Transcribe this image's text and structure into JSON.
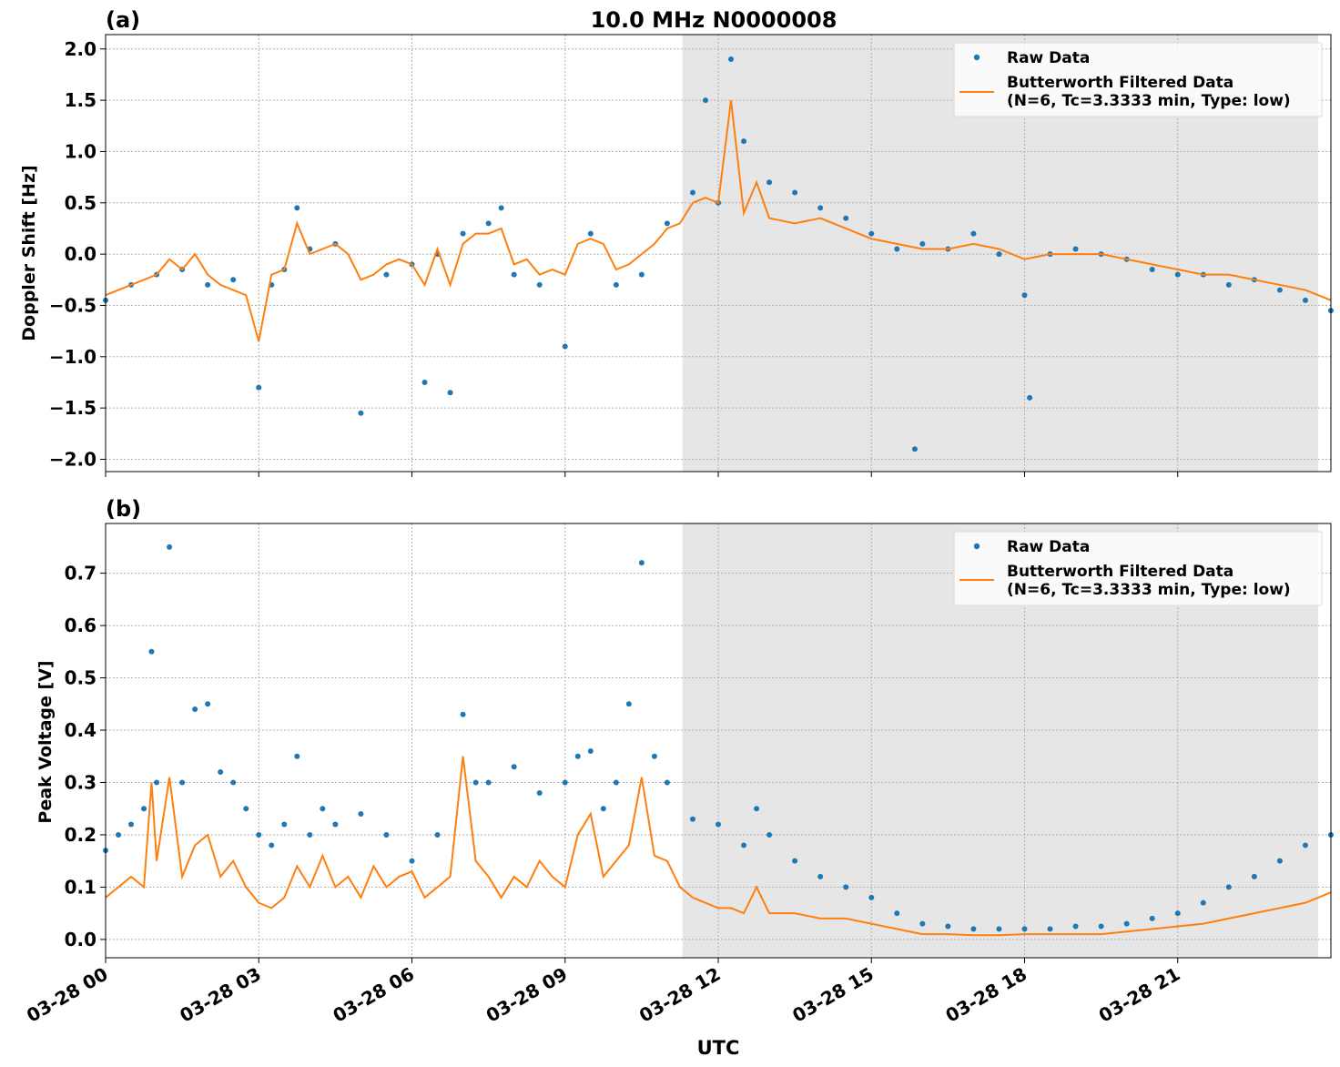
{
  "figure": {
    "title": "10.0 MHz N0000008",
    "xlabel": "UTC",
    "shade_color": "#e6e6e6",
    "raw_color": "#1f77b4",
    "filtered_color": "#ff7f0e"
  },
  "chart_data": [
    {
      "type": "scatter",
      "panel_label": "(a)",
      "title": "10.0 MHz N0000008",
      "ylabel": "Doppler Shift [Hz]",
      "xlabel": "",
      "xlim": [
        0,
        24
      ],
      "ylim": [
        -2.12,
        2.14
      ],
      "x_ticks": [
        0,
        3,
        6,
        9,
        12,
        15,
        18,
        21
      ],
      "x_tick_labels": [],
      "y_ticks": [
        -2.0,
        -1.5,
        -1.0,
        -0.5,
        0.0,
        0.5,
        1.0,
        1.5,
        2.0
      ],
      "y_tick_labels": [
        "−2.0",
        "−1.5",
        "−1.0",
        "−0.5",
        "0.0",
        "0.5",
        "1.0",
        "1.5",
        "2.0"
      ],
      "grid": true,
      "shaded_region_x": [
        11.3,
        23.75
      ],
      "legend_position": "top-right",
      "legend": [
        "Raw Data",
        "Butterworth Filtered Data\n(N=6, Tc=3.3333 min, Type: low)"
      ],
      "series": [
        {
          "name": "Raw Data",
          "style": "scatter",
          "x": [
            0.0,
            0.5,
            1.0,
            1.5,
            2.0,
            2.5,
            3.0,
            3.25,
            3.5,
            3.75,
            4.0,
            4.5,
            5.0,
            5.5,
            6.0,
            6.25,
            6.5,
            6.75,
            7.0,
            7.5,
            7.75,
            8.0,
            8.5,
            9.0,
            9.5,
            10.0,
            10.5,
            11.0,
            11.5,
            11.75,
            12.0,
            12.25,
            12.5,
            13.0,
            13.5,
            14.0,
            14.5,
            15.0,
            15.5,
            15.85,
            16.0,
            16.5,
            17.0,
            17.5,
            18.0,
            18.1,
            18.5,
            19.0,
            19.5,
            20.0,
            20.5,
            21.0,
            21.5,
            22.0,
            22.5,
            23.0,
            23.5,
            24.0
          ],
          "y": [
            -0.45,
            -0.3,
            -0.2,
            -0.15,
            -0.3,
            -0.25,
            -1.3,
            -0.3,
            -0.15,
            0.45,
            0.05,
            0.1,
            -1.55,
            -0.2,
            -0.1,
            -1.25,
            0.0,
            -1.35,
            0.2,
            0.3,
            0.45,
            -0.2,
            -0.3,
            -0.9,
            0.2,
            -0.3,
            -0.2,
            0.3,
            0.6,
            1.5,
            0.5,
            1.9,
            1.1,
            0.7,
            0.6,
            0.45,
            0.35,
            0.2,
            0.05,
            -1.9,
            0.1,
            0.05,
            0.2,
            0.0,
            -0.4,
            -1.4,
            0.0,
            0.05,
            0.0,
            -0.05,
            -0.15,
            -0.2,
            -0.2,
            -0.3,
            -0.25,
            -0.35,
            -0.45,
            -0.55
          ]
        },
        {
          "name": "Butterworth Filtered Data\n(N=6, Tc=3.3333 min, Type: low)",
          "style": "line",
          "x": [
            0.0,
            0.25,
            0.5,
            0.75,
            1.0,
            1.25,
            1.5,
            1.75,
            2.0,
            2.25,
            2.5,
            2.75,
            3.0,
            3.25,
            3.5,
            3.75,
            4.0,
            4.25,
            4.5,
            4.75,
            5.0,
            5.25,
            5.5,
            5.75,
            6.0,
            6.25,
            6.5,
            6.75,
            7.0,
            7.25,
            7.5,
            7.75,
            8.0,
            8.25,
            8.5,
            8.75,
            9.0,
            9.25,
            9.5,
            9.75,
            10.0,
            10.25,
            10.5,
            10.75,
            11.0,
            11.25,
            11.5,
            11.75,
            12.0,
            12.25,
            12.5,
            12.75,
            13.0,
            13.5,
            14.0,
            14.5,
            15.0,
            15.5,
            16.0,
            16.5,
            17.0,
            17.5,
            18.0,
            18.5,
            19.0,
            19.5,
            20.0,
            20.5,
            21.0,
            21.5,
            22.0,
            22.5,
            23.0,
            23.5,
            24.0
          ],
          "y": [
            -0.4,
            -0.35,
            -0.3,
            -0.25,
            -0.2,
            -0.05,
            -0.15,
            0.0,
            -0.2,
            -0.3,
            -0.35,
            -0.4,
            -0.85,
            -0.2,
            -0.15,
            0.3,
            0.0,
            0.05,
            0.1,
            0.0,
            -0.25,
            -0.2,
            -0.1,
            -0.05,
            -0.1,
            -0.3,
            0.05,
            -0.3,
            0.1,
            0.2,
            0.2,
            0.25,
            -0.1,
            -0.05,
            -0.2,
            -0.15,
            -0.2,
            0.1,
            0.15,
            0.1,
            -0.15,
            -0.1,
            0.0,
            0.1,
            0.25,
            0.3,
            0.5,
            0.55,
            0.5,
            1.5,
            0.4,
            0.7,
            0.35,
            0.3,
            0.35,
            0.25,
            0.15,
            0.1,
            0.05,
            0.05,
            0.1,
            0.05,
            -0.05,
            0.0,
            0.0,
            0.0,
            -0.05,
            -0.1,
            -0.15,
            -0.2,
            -0.2,
            -0.25,
            -0.3,
            -0.35,
            -0.45
          ]
        }
      ]
    },
    {
      "type": "scatter",
      "panel_label": "(b)",
      "title": "",
      "ylabel": "Peak Voltage [V]",
      "xlabel": "UTC",
      "xlim": [
        0,
        24
      ],
      "ylim": [
        -0.035,
        0.795
      ],
      "x_ticks": [
        0,
        3,
        6,
        9,
        12,
        15,
        18,
        21
      ],
      "x_tick_labels": [
        "03-28 00",
        "03-28 03",
        "03-28 06",
        "03-28 09",
        "03-28 12",
        "03-28 15",
        "03-28 18",
        "03-28 21"
      ],
      "y_ticks": [
        0.0,
        0.1,
        0.2,
        0.3,
        0.4,
        0.5,
        0.6,
        0.7
      ],
      "y_tick_labels": [
        "0.0",
        "0.1",
        "0.2",
        "0.3",
        "0.4",
        "0.5",
        "0.6",
        "0.7"
      ],
      "grid": true,
      "shaded_region_x": [
        11.3,
        23.75
      ],
      "legend_position": "top-right",
      "legend": [
        "Raw Data",
        "Butterworth Filtered Data\n(N=6, Tc=3.3333 min, Type: low)"
      ],
      "series": [
        {
          "name": "Raw Data",
          "style": "scatter",
          "x": [
            0.0,
            0.25,
            0.5,
            0.75,
            0.9,
            1.0,
            1.25,
            1.5,
            1.75,
            2.0,
            2.25,
            2.5,
            2.75,
            3.0,
            3.25,
            3.5,
            3.75,
            4.0,
            4.25,
            4.5,
            5.0,
            5.5,
            6.0,
            6.5,
            7.0,
            7.25,
            7.5,
            8.0,
            8.5,
            9.0,
            9.25,
            9.5,
            9.75,
            10.0,
            10.25,
            10.5,
            10.75,
            11.0,
            11.5,
            12.0,
            12.5,
            12.75,
            13.0,
            13.5,
            14.0,
            14.5,
            15.0,
            15.5,
            16.0,
            16.5,
            17.0,
            17.5,
            18.0,
            18.5,
            19.0,
            19.5,
            20.0,
            20.5,
            21.0,
            21.5,
            22.0,
            22.5,
            23.0,
            23.5,
            24.0
          ],
          "y": [
            0.17,
            0.2,
            0.22,
            0.25,
            0.55,
            0.3,
            0.75,
            0.3,
            0.44,
            0.45,
            0.32,
            0.3,
            0.25,
            0.2,
            0.18,
            0.22,
            0.35,
            0.2,
            0.25,
            0.22,
            0.24,
            0.2,
            0.15,
            0.2,
            0.43,
            0.3,
            0.3,
            0.33,
            0.28,
            0.3,
            0.35,
            0.36,
            0.25,
            0.3,
            0.45,
            0.72,
            0.35,
            0.3,
            0.23,
            0.22,
            0.18,
            0.25,
            0.2,
            0.15,
            0.12,
            0.1,
            0.08,
            0.05,
            0.03,
            0.025,
            0.02,
            0.02,
            0.02,
            0.02,
            0.025,
            0.025,
            0.03,
            0.04,
            0.05,
            0.07,
            0.1,
            0.12,
            0.15,
            0.18,
            0.2
          ]
        },
        {
          "name": "Butterworth Filtered Data\n(N=6, Tc=3.3333 min, Type: low)",
          "style": "line",
          "x": [
            0.0,
            0.25,
            0.5,
            0.75,
            0.9,
            1.0,
            1.25,
            1.5,
            1.75,
            2.0,
            2.25,
            2.5,
            2.75,
            3.0,
            3.25,
            3.5,
            3.75,
            4.0,
            4.25,
            4.5,
            4.75,
            5.0,
            5.25,
            5.5,
            5.75,
            6.0,
            6.25,
            6.5,
            6.75,
            7.0,
            7.25,
            7.5,
            7.75,
            8.0,
            8.25,
            8.5,
            8.75,
            9.0,
            9.25,
            9.5,
            9.75,
            10.0,
            10.25,
            10.5,
            10.75,
            11.0,
            11.25,
            11.5,
            11.75,
            12.0,
            12.25,
            12.5,
            12.75,
            13.0,
            13.5,
            14.0,
            14.5,
            15.0,
            15.5,
            16.0,
            16.5,
            17.0,
            17.5,
            18.0,
            18.5,
            19.0,
            19.5,
            20.0,
            20.5,
            21.0,
            21.5,
            22.0,
            22.5,
            23.0,
            23.5,
            24.0
          ],
          "y": [
            0.08,
            0.1,
            0.12,
            0.1,
            0.3,
            0.15,
            0.31,
            0.12,
            0.18,
            0.2,
            0.12,
            0.15,
            0.1,
            0.07,
            0.06,
            0.08,
            0.14,
            0.1,
            0.16,
            0.1,
            0.12,
            0.08,
            0.14,
            0.1,
            0.12,
            0.13,
            0.08,
            0.1,
            0.12,
            0.35,
            0.15,
            0.12,
            0.08,
            0.12,
            0.1,
            0.15,
            0.12,
            0.1,
            0.2,
            0.24,
            0.12,
            0.15,
            0.18,
            0.31,
            0.16,
            0.15,
            0.1,
            0.08,
            0.07,
            0.06,
            0.06,
            0.05,
            0.1,
            0.05,
            0.05,
            0.04,
            0.04,
            0.03,
            0.02,
            0.01,
            0.01,
            0.008,
            0.008,
            0.01,
            0.01,
            0.01,
            0.01,
            0.015,
            0.02,
            0.025,
            0.03,
            0.04,
            0.05,
            0.06,
            0.07,
            0.09
          ]
        }
      ]
    }
  ]
}
